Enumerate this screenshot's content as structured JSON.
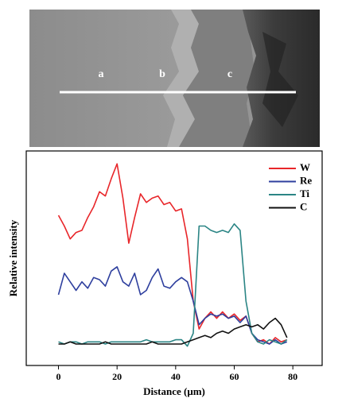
{
  "image": {
    "labels": [
      "a",
      "b",
      "c"
    ]
  },
  "chart_data": {
    "type": "line",
    "xlabel": "Distance (μm)",
    "ylabel": "Relative intensity",
    "x": [
      0,
      2,
      4,
      6,
      8,
      10,
      12,
      14,
      16,
      18,
      20,
      22,
      24,
      26,
      28,
      30,
      32,
      34,
      36,
      38,
      40,
      42,
      44,
      46,
      48,
      50,
      52,
      54,
      56,
      58,
      60,
      62,
      64,
      66,
      68,
      70,
      72,
      74,
      76,
      78
    ],
    "series": [
      {
        "name": "W",
        "color": "#e8262a",
        "values": [
          70,
          65,
          59,
          62,
          63,
          69,
          74,
          81,
          79,
          87,
          94,
          78,
          57,
          69,
          80,
          76,
          78,
          79,
          75,
          76,
          72,
          73,
          59,
          30,
          17,
          22,
          25,
          22,
          25,
          22,
          24,
          21,
          23,
          15,
          11,
          12,
          10,
          13,
          11,
          12
        ]
      },
      {
        "name": "Re",
        "color": "#2e3f9e",
        "values": [
          33,
          43,
          39,
          35,
          39,
          36,
          41,
          40,
          37,
          44,
          46,
          39,
          37,
          43,
          33,
          35,
          41,
          45,
          37,
          36,
          39,
          41,
          39,
          30,
          19,
          22,
          24,
          23,
          24,
          22,
          23,
          20,
          23,
          15,
          12,
          11,
          10,
          12,
          10,
          11
        ]
      },
      {
        "name": "Ti",
        "color": "#2b8585",
        "values": [
          11,
          10,
          11,
          11,
          10,
          11,
          11,
          11,
          10,
          11,
          11,
          11,
          11,
          11,
          11,
          12,
          11,
          11,
          11,
          11,
          12,
          12,
          9,
          15,
          65,
          65,
          63,
          62,
          63,
          62,
          66,
          63,
          30,
          15,
          11,
          10,
          12,
          11,
          10,
          12
        ]
      },
      {
        "name": "C",
        "color": "#111111",
        "values": [
          10,
          10,
          11,
          10,
          10,
          10,
          10,
          10,
          11,
          10,
          10,
          10,
          10,
          10,
          10,
          10,
          11,
          10,
          10,
          10,
          10,
          10,
          11,
          12,
          13,
          14,
          13,
          15,
          16,
          15,
          17,
          18,
          19,
          18,
          19,
          17,
          20,
          22,
          19,
          13
        ]
      }
    ],
    "xlim": [
      -11,
      90
    ],
    "ylim": [
      0,
      100
    ],
    "xticks": [
      0,
      20,
      40,
      60,
      80
    ],
    "legend": "upper right"
  }
}
